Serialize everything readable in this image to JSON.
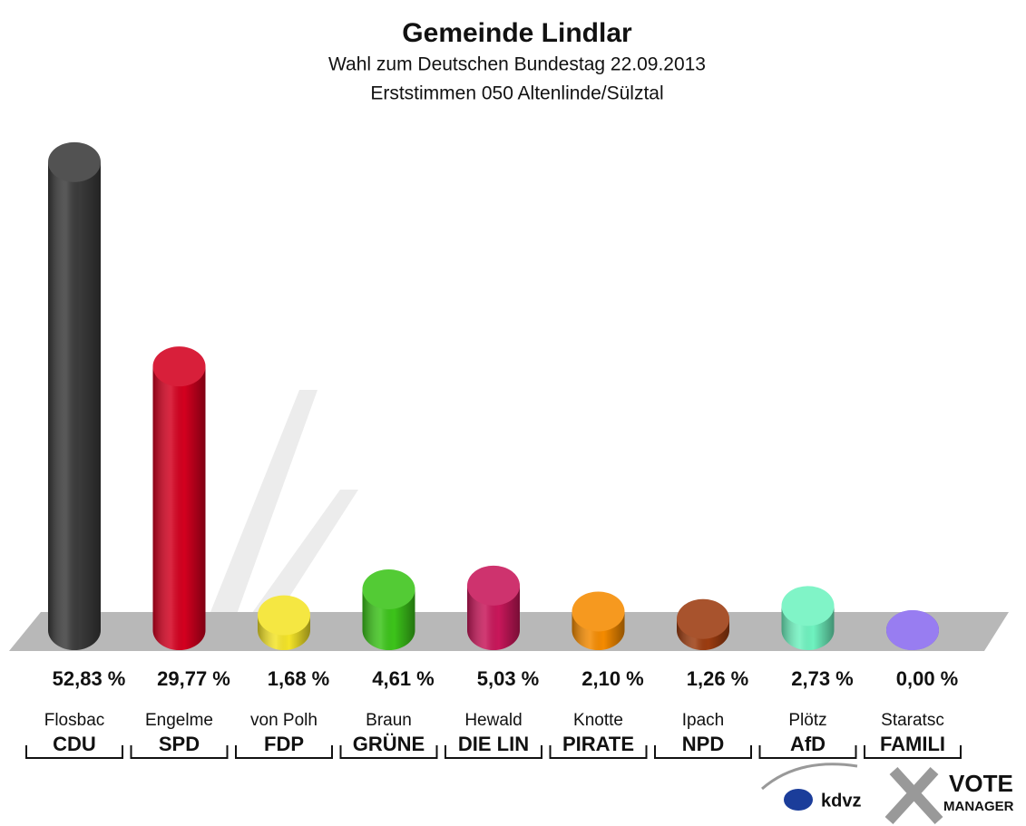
{
  "chart_data": {
    "type": "bar",
    "title": "Gemeinde Lindlar",
    "subtitles": [
      "Wahl zum Deutschen Bundestag 22.09.2013",
      "Erststimmen 050 Altenlinde/Sülztal"
    ],
    "categories": [
      "CDU",
      "SPD",
      "FDP",
      "GRÜNE",
      "DIE LIN",
      "PIRATE",
      "NPD",
      "AfD",
      "FAMILI"
    ],
    "candidates": [
      "Flosbac",
      "Engelme",
      "von Polh",
      "Braun",
      "Hewald",
      "Knotte",
      "Ipach",
      "Plötz",
      "Staratsc"
    ],
    "values": [
      52.83,
      29.77,
      1.68,
      4.61,
      5.03,
      2.1,
      1.26,
      2.73,
      0.0
    ],
    "value_labels": [
      "52,83 %",
      "29,77 %",
      "1,68 %",
      "4,61 %",
      "5,03 %",
      "2,10 %",
      "1,26 %",
      "2,73 %",
      "0,00 %"
    ],
    "colors": [
      "#3b3b3b",
      "#d3001f",
      "#f4e428",
      "#3cc41a",
      "#c8175a",
      "#f58b00",
      "#9c3c10",
      "#6ff3c0",
      "#8a6cf0"
    ],
    "logo": {
      "kdvz": "kdvz",
      "vote": "VOTE",
      "manager": "MANAGER"
    }
  }
}
